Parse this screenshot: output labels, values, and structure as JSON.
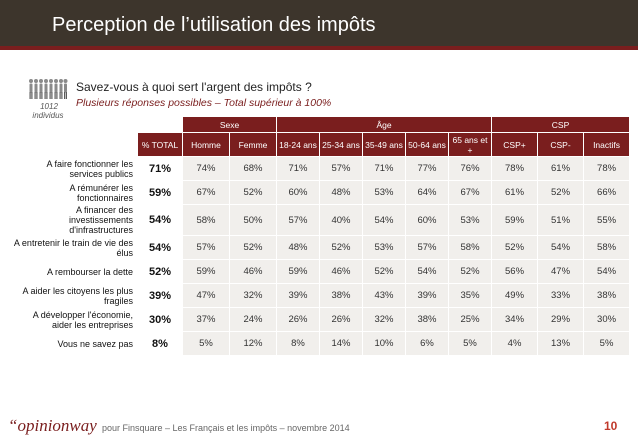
{
  "title": "Perception de l’utilisation des impôts",
  "sample": {
    "n": "1012",
    "label": "individus"
  },
  "question": "Savez-vous à quoi sert l'argent des impôts ?",
  "subtitle": "Plusieurs réponses possibles – Total supérieur à 100%",
  "colors": {
    "header_bg": "#3d352c",
    "accent": "#7a1e1e",
    "cell_bg": "#f1efec",
    "page_number": "#c0392b"
  },
  "table": {
    "group_headers": {
      "sexe": "Sexe",
      "age": "Âge",
      "csp": "CSP"
    },
    "columns": [
      "% TOTAL",
      "Homme",
      "Femme",
      "18-24 ans",
      "25-34 ans",
      "35-49 ans",
      "50-64 ans",
      "65 ans et +",
      "CSP+",
      "CSP-",
      "Inactifs"
    ],
    "rows": [
      {
        "label": "A faire fonctionner les services publics",
        "values": [
          "71%",
          "74%",
          "68%",
          "71%",
          "57%",
          "71%",
          "77%",
          "76%",
          "78%",
          "61%",
          "78%"
        ]
      },
      {
        "label": "A rémunérer les fonctionnaires",
        "values": [
          "59%",
          "67%",
          "52%",
          "60%",
          "48%",
          "53%",
          "64%",
          "67%",
          "61%",
          "52%",
          "66%"
        ]
      },
      {
        "label": "A financer des investissements d'infrastructures",
        "values": [
          "54%",
          "58%",
          "50%",
          "57%",
          "40%",
          "54%",
          "60%",
          "53%",
          "59%",
          "51%",
          "55%"
        ]
      },
      {
        "label": "A entretenir le train de vie des élus",
        "values": [
          "54%",
          "57%",
          "52%",
          "48%",
          "52%",
          "53%",
          "57%",
          "58%",
          "52%",
          "54%",
          "58%"
        ]
      },
      {
        "label": "A rembourser la dette",
        "values": [
          "52%",
          "59%",
          "46%",
          "59%",
          "46%",
          "52%",
          "54%",
          "52%",
          "56%",
          "47%",
          "54%"
        ]
      },
      {
        "label": "A aider les citoyens les plus fragiles",
        "values": [
          "39%",
          "47%",
          "32%",
          "39%",
          "38%",
          "43%",
          "39%",
          "35%",
          "49%",
          "33%",
          "38%"
        ]
      },
      {
        "label": "A développer l'économie, aider les entreprises",
        "values": [
          "30%",
          "37%",
          "24%",
          "26%",
          "26%",
          "32%",
          "38%",
          "25%",
          "34%",
          "29%",
          "30%"
        ]
      },
      {
        "label": "Vous ne savez pas",
        "values": [
          "8%",
          "5%",
          "12%",
          "8%",
          "14%",
          "10%",
          "6%",
          "5%",
          "4%",
          "13%",
          "5%"
        ]
      }
    ]
  },
  "footer": {
    "logo": "opinionway",
    "logo_quote": "“",
    "text": "pour Finsquare – Les Français et les impôts – novembre 2014",
    "page": "10"
  }
}
